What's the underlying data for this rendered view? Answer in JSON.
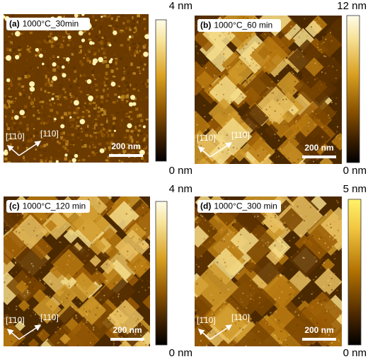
{
  "panels": [
    {
      "label": "(a)",
      "title": "1000°C_30min",
      "colorbar_max": "4 nm",
      "colorbar_min": "0 nm",
      "direction_1": "[1̄10]",
      "direction_2": "[110]",
      "scale_bar": "200 nm"
    },
    {
      "label": "(b)",
      "title": "1000°C_60 min",
      "colorbar_max": "12 nm",
      "colorbar_min": "0 nm",
      "direction_1": "[1̄10]",
      "direction_2": "[110]",
      "scale_bar": "200 nm"
    },
    {
      "label": "(c)",
      "title": "1000°C_120 min",
      "colorbar_max": "4 nm",
      "colorbar_min": "0 nm",
      "direction_1": "[1̄10]",
      "direction_2": "[110]",
      "scale_bar": "200 nm"
    },
    {
      "label": "(d)",
      "title": "1000°C_300 min",
      "colorbar_max": "5 nm",
      "colorbar_min": "0 nm",
      "direction_1": "[1̄10]",
      "direction_2": "[110]",
      "scale_bar": "200 nm"
    }
  ]
}
